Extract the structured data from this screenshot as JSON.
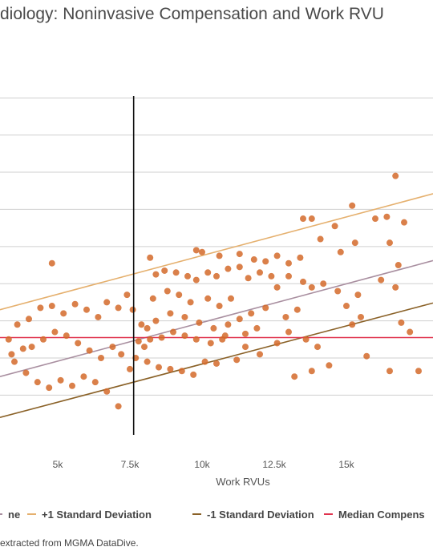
{
  "title": "diology: Noninvasive Compensation and Work RVU",
  "source": "extracted from MGMA DataDive.",
  "chart_data": {
    "type": "scatter",
    "title": "diology: Noninvasive Compensation and Work RVU",
    "xlabel": "Work RVUs",
    "ylabel": "",
    "xlim": [
      3000,
      18000
    ],
    "ylim": [
      0,
      1110000
    ],
    "x_ticks": [
      {
        "value": 5000,
        "label": "5k"
      },
      {
        "value": 7500,
        "label": "7.5k"
      },
      {
        "value": 10000,
        "label": "10k"
      },
      {
        "value": 12500,
        "label": "12.5k"
      },
      {
        "value": 15000,
        "label": "15k"
      }
    ],
    "y_gridlines": [
      150000,
      250000,
      350000,
      450000,
      550000,
      650000,
      750000,
      850000,
      950000
    ],
    "grid": true,
    "legend_position": "bottom",
    "vertical_marker": {
      "x": 7630
    },
    "reference_lines": [
      {
        "name": "ne",
        "color": "#a98fa0",
        "x": [
          3000,
          18000
        ],
        "y": [
          200000,
          512000
        ]
      },
      {
        "name": "+1 Standard Deviation",
        "color": "#e5b06e",
        "x": [
          3000,
          18000
        ],
        "y": [
          380000,
          692000
        ]
      },
      {
        "name": "-1 Standard Deviation",
        "color": "#8a6127",
        "x": [
          3000,
          18000
        ],
        "y": [
          90000,
          398000
        ]
      },
      {
        "name": "Median Compens",
        "color": "#e0334e",
        "x": [
          3000,
          18000
        ],
        "y": [
          305000,
          305000
        ]
      }
    ],
    "legend": [
      {
        "label": "ne",
        "color": "#a98fa0"
      },
      {
        "label": "+1 Standard Deviation",
        "color": "#e5b06e"
      },
      {
        "label": "-1 Standard Deviation",
        "color": "#8a6127"
      },
      {
        "label": "Median Compens",
        "color": "#e0334e"
      }
    ],
    "point_color": "#d46a2a",
    "points": [
      [
        16700,
        740000
      ],
      [
        17000,
        615000
      ],
      [
        16400,
        630000
      ],
      [
        16000,
        625000
      ],
      [
        15200,
        660000
      ],
      [
        15300,
        560000
      ],
      [
        14600,
        605000
      ],
      [
        13800,
        625000
      ],
      [
        13500,
        625000
      ],
      [
        14100,
        570000
      ],
      [
        14800,
        535000
      ],
      [
        13400,
        520000
      ],
      [
        13000,
        505000
      ],
      [
        12600,
        525000
      ],
      [
        12200,
        510000
      ],
      [
        11800,
        515000
      ],
      [
        11300,
        530000
      ],
      [
        10600,
        525000
      ],
      [
        10000,
        535000
      ],
      [
        9800,
        540000
      ],
      [
        8200,
        520000
      ],
      [
        4800,
        505000
      ],
      [
        16500,
        560000
      ],
      [
        16800,
        500000
      ],
      [
        16200,
        460000
      ],
      [
        16700,
        440000
      ],
      [
        16900,
        345000
      ],
      [
        17200,
        320000
      ],
      [
        17500,
        215000
      ],
      [
        16500,
        215000
      ],
      [
        15700,
        255000
      ],
      [
        15500,
        360000
      ],
      [
        15200,
        340000
      ],
      [
        15000,
        390000
      ],
      [
        15400,
        420000
      ],
      [
        14700,
        430000
      ],
      [
        14200,
        450000
      ],
      [
        13800,
        440000
      ],
      [
        13500,
        455000
      ],
      [
        13000,
        470000
      ],
      [
        12400,
        470000
      ],
      [
        12000,
        480000
      ],
      [
        11600,
        465000
      ],
      [
        11300,
        495000
      ],
      [
        10900,
        490000
      ],
      [
        10500,
        470000
      ],
      [
        10200,
        480000
      ],
      [
        9800,
        460000
      ],
      [
        9500,
        470000
      ],
      [
        9100,
        480000
      ],
      [
        8700,
        485000
      ],
      [
        8400,
        475000
      ],
      [
        14000,
        280000
      ],
      [
        13600,
        300000
      ],
      [
        13000,
        320000
      ],
      [
        12600,
        290000
      ],
      [
        13800,
        215000
      ],
      [
        14400,
        230000
      ],
      [
        13200,
        200000
      ],
      [
        12000,
        260000
      ],
      [
        11500,
        280000
      ],
      [
        11200,
        245000
      ],
      [
        10800,
        310000
      ],
      [
        10500,
        235000
      ],
      [
        10100,
        240000
      ],
      [
        9700,
        205000
      ],
      [
        9300,
        215000
      ],
      [
        8900,
        220000
      ],
      [
        8500,
        225000
      ],
      [
        8100,
        240000
      ],
      [
        8000,
        280000
      ],
      [
        7900,
        340000
      ],
      [
        7600,
        380000
      ],
      [
        7400,
        420000
      ],
      [
        7100,
        385000
      ],
      [
        6700,
        400000
      ],
      [
        6400,
        360000
      ],
      [
        6000,
        380000
      ],
      [
        5600,
        395000
      ],
      [
        5200,
        370000
      ],
      [
        4800,
        390000
      ],
      [
        4400,
        385000
      ],
      [
        4000,
        355000
      ],
      [
        3600,
        340000
      ],
      [
        3300,
        300000
      ],
      [
        3500,
        240000
      ],
      [
        3900,
        210000
      ],
      [
        4300,
        185000
      ],
      [
        4700,
        170000
      ],
      [
        5100,
        190000
      ],
      [
        5500,
        175000
      ],
      [
        5900,
        200000
      ],
      [
        6300,
        185000
      ],
      [
        6700,
        160000
      ],
      [
        7100,
        120000
      ],
      [
        7500,
        220000
      ],
      [
        7700,
        250000
      ],
      [
        7200,
        260000
      ],
      [
        6900,
        280000
      ],
      [
        6500,
        250000
      ],
      [
        6100,
        270000
      ],
      [
        5700,
        290000
      ],
      [
        5300,
        310000
      ],
      [
        4900,
        320000
      ],
      [
        4500,
        300000
      ],
      [
        4100,
        280000
      ],
      [
        3800,
        275000
      ],
      [
        3400,
        260000
      ],
      [
        12600,
        440000
      ],
      [
        11000,
        410000
      ],
      [
        10600,
        390000
      ],
      [
        10200,
        410000
      ],
      [
        9600,
        400000
      ],
      [
        9200,
        420000
      ],
      [
        8800,
        430000
      ],
      [
        8300,
        410000
      ],
      [
        12200,
        385000
      ],
      [
        11700,
        370000
      ],
      [
        11300,
        355000
      ],
      [
        10900,
        340000
      ],
      [
        10400,
        330000
      ],
      [
        9900,
        345000
      ],
      [
        9400,
        360000
      ],
      [
        8900,
        370000
      ],
      [
        8400,
        350000
      ],
      [
        8100,
        330000
      ],
      [
        13300,
        380000
      ],
      [
        12900,
        360000
      ],
      [
        11900,
        330000
      ],
      [
        11500,
        315000
      ],
      [
        10700,
        300000
      ],
      [
        10300,
        290000
      ],
      [
        9800,
        300000
      ],
      [
        9400,
        310000
      ],
      [
        9000,
        320000
      ],
      [
        8600,
        305000
      ],
      [
        8200,
        300000
      ],
      [
        7800,
        295000
      ]
    ]
  }
}
